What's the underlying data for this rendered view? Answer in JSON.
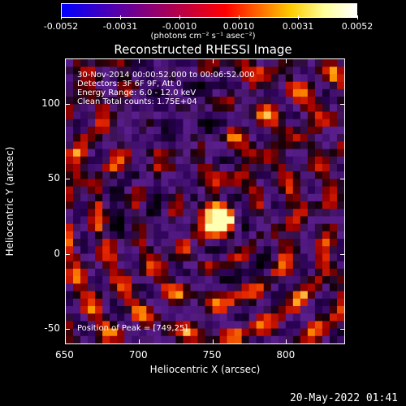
{
  "colorbar": {
    "tick_labels": [
      "-0.0052",
      "-0.0031",
      "-0.0010",
      "0.0010",
      "0.0031",
      "0.0052"
    ],
    "units": "(photons cm⁻² s⁻¹ asec⁻²)",
    "colors": [
      "#0000ff",
      "#3300cc",
      "#660099",
      "#990066",
      "#cc0033",
      "#ff0000",
      "#ff6600",
      "#ffcc00",
      "#ffff99",
      "#ffffff"
    ]
  },
  "chart_data": {
    "type": "heatmap",
    "title": "Reconstructed RHESSI Image",
    "xlabel": "Heliocentric X (arcsec)",
    "ylabel": "Heliocentric Y (arcsec)",
    "xlim": [
      650,
      840
    ],
    "ylim": [
      -60,
      130
    ],
    "xticks": [
      650,
      700,
      750,
      800
    ],
    "yticks": [
      -50,
      0,
      50,
      100
    ],
    "peak": {
      "x": 749,
      "y": 25
    },
    "annotations": [
      "30-Nov-2014 00:00:52.000 to 00:06:52.000",
      "Detectors: 3F 6F 9F, Att 0",
      "Energy Range: 6.0 - 12.0 keV",
      "Clean     Total counts: 1.75E+04"
    ],
    "peak_label": "Position of Peak = [749,25]"
  },
  "datestamp": "20-May-2022 01:41"
}
